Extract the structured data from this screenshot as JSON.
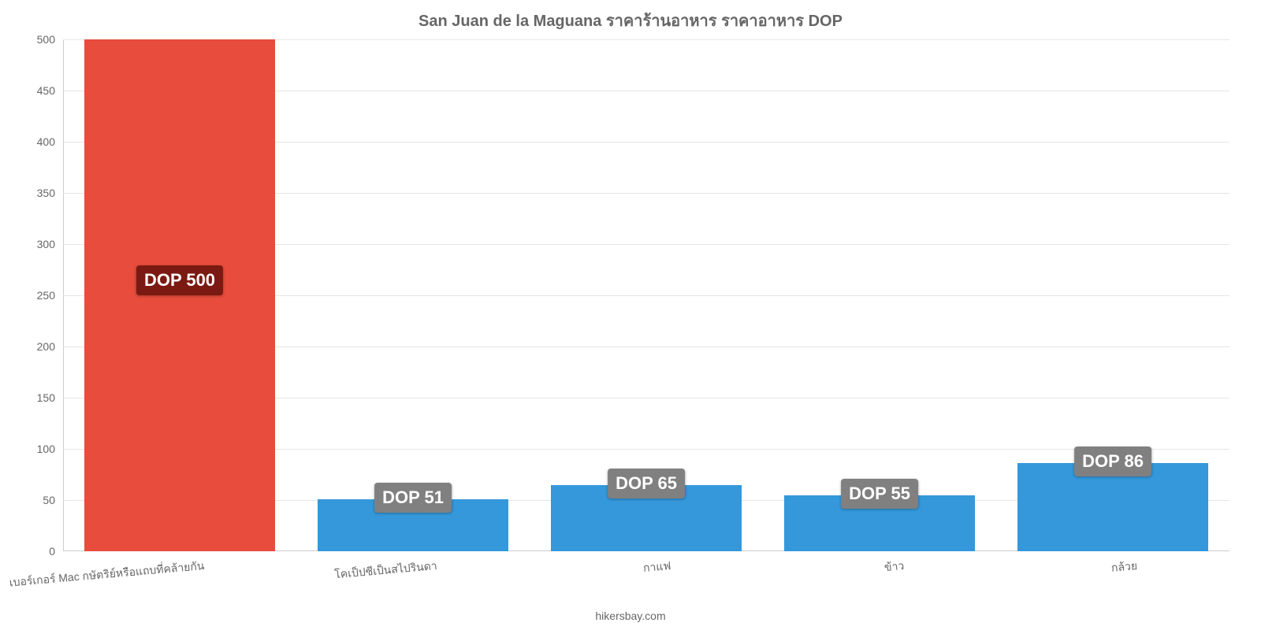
{
  "chart": {
    "type": "bar",
    "title": "San Juan de la Maguana ราคาร้านอาหาร ราคาอาหาร DOP",
    "title_fontsize": 20,
    "title_color": "#666666",
    "attribution": "hikersbay.com",
    "background_color": "#ffffff",
    "grid_color": "#e6e6e6",
    "axis_color": "#cccccc",
    "tick_font_color": "#666666",
    "ylim": [
      0,
      500
    ],
    "ytick_step": 50,
    "ytick_labels": [
      "0",
      "50",
      "100",
      "150",
      "200",
      "250",
      "300",
      "350",
      "400",
      "450",
      "500"
    ],
    "bar_width_ratio": 0.82,
    "categories": [
      "เบอร์เกอร์ Mac กษัตริย์หรือแถบที่คล้ายกัน",
      "โคเป็ปซีเป็นสไปรินดา",
      "กาแฟ",
      "ข้าว",
      "กล้วย"
    ],
    "values": [
      500,
      51,
      65,
      55,
      86
    ],
    "value_labels": [
      "DOP 500",
      "DOP 51",
      "DOP 65",
      "DOP 55",
      "DOP 86"
    ],
    "bar_colors": [
      "#e74c3c",
      "#3498db",
      "#3498db",
      "#3498db",
      "#3498db"
    ],
    "label_bg_colors": [
      "#7b1a12",
      "#808080",
      "#808080",
      "#808080",
      "#808080"
    ],
    "label_text_color": "#ffffff",
    "label_fontsize": 22,
    "x_label_rotation_deg": 5,
    "x_label_fontsize": 14
  }
}
